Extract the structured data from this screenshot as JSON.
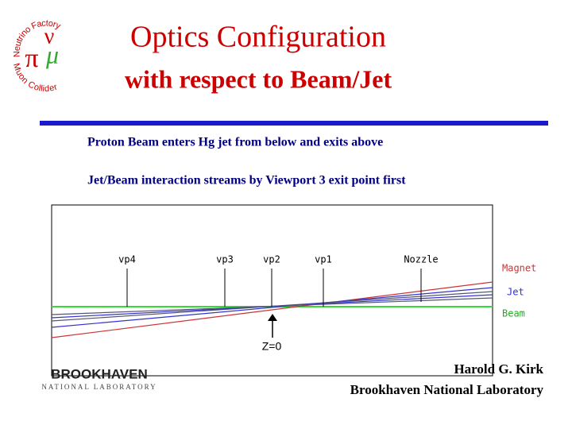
{
  "header": {
    "logo": {
      "top_text": "Neutrino Factory",
      "bottom_text": "Muon Collider",
      "symbols": [
        "ν",
        "π",
        "μ"
      ]
    },
    "title": "Optics Configuration",
    "subtitle": "with respect to Beam/Jet"
  },
  "body": {
    "lines": [
      "Proton Beam enters Hg jet from below and exits above",
      "Jet/Beam interaction streams by Viewport 3 exit point first"
    ]
  },
  "diagram": {
    "viewports": [
      "vp4",
      "vp3",
      "vp2",
      "vp1",
      "Nozzle"
    ],
    "legend": [
      "Magnet",
      "Jet",
      "Beam"
    ],
    "origin_label": "Z=0"
  },
  "footer": {
    "logo": {
      "name": "BROOKHAVEN",
      "subname": "NATIONAL LABORATORY"
    },
    "author": "Harold G. Kirk",
    "affiliation": "Brookhaven National Laboratory"
  }
}
